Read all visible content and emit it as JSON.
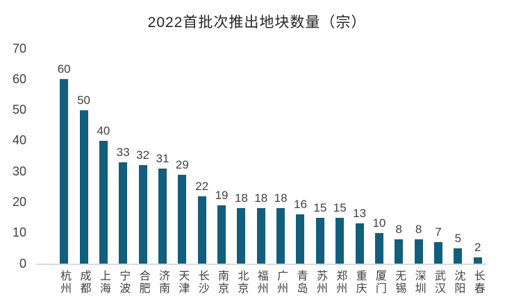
{
  "title": "2022首批次推出地块数量（宗）",
  "colors": {
    "bar": "#115f7c",
    "axis_line": "#d9d9d9",
    "label_text": "#404040",
    "title_text": "#262626",
    "background": "#ffffff"
  },
  "y_axis": {
    "ticks": [
      70,
      60,
      50,
      40,
      30,
      20,
      10,
      0
    ],
    "max": 70
  },
  "chart_data": {
    "type": "bar",
    "title": "2022首批次推出地块数量（宗）",
    "categories": [
      "杭州",
      "成都",
      "上海",
      "宁波",
      "合肥",
      "济南",
      "天津",
      "长沙",
      "南京",
      "北京",
      "福州",
      "广州",
      "青岛",
      "苏州",
      "郑州",
      "重庆",
      "厦门",
      "无锡",
      "深圳",
      "武汉",
      "沈阳",
      "长春"
    ],
    "values": [
      60,
      50,
      40,
      33,
      32,
      31,
      29,
      22,
      19,
      18,
      18,
      18,
      16,
      15,
      15,
      13,
      10,
      8,
      8,
      7,
      5,
      2
    ],
    "xlabel": "",
    "ylabel": "",
    "ylim": [
      0,
      70
    ],
    "grid": false,
    "legend": false,
    "data_labels": true,
    "bar_color": "#115f7c"
  }
}
